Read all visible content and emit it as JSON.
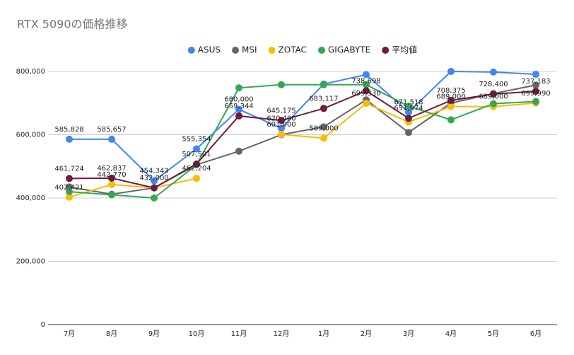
{
  "chart_data": {
    "type": "line",
    "title": "RTX 5090の価格推移",
    "categories": [
      "7月",
      "8月",
      "9月",
      "10月",
      "11月",
      "12月",
      "1月",
      "2月",
      "3月",
      "4月",
      "5月",
      "6月"
    ],
    "ylim": [
      0,
      800000
    ],
    "yticks": [
      {
        "value": 0,
        "label": "0"
      },
      {
        "value": 200000,
        "label": "200,000"
      },
      {
        "value": 400000,
        "label": "400,000"
      },
      {
        "value": 600000,
        "label": "600,000"
      },
      {
        "value": 800000,
        "label": "800,000"
      }
    ],
    "grid": true,
    "legend": "top",
    "series": [
      {
        "name": "ASUS",
        "color": "#4285f4",
        "values": [
          585828,
          585657,
          454343,
          555354,
          680000,
          620400,
          760000,
          790000,
          671518,
          800000,
          798000,
          791000
        ],
        "value_labels": [
          "585,828",
          "585,657",
          "454,343",
          "555,354",
          "680,000",
          "620,400",
          null,
          null,
          "671,518",
          null,
          null,
          null
        ]
      },
      {
        "name": "MSI",
        "color": "#666666",
        "values": [
          435000,
          412000,
          432000,
          505000,
          548000,
          600000,
          625000,
          710000,
          607000,
          700000,
          730000,
          757000
        ]
      },
      {
        "name": "ZOTAC",
        "color": "#fbbc04",
        "values": [
          402421,
          442770,
          432000,
          462204,
          null,
          601000,
          589000,
          699330,
          640000,
          689000,
          689000,
          699990
        ],
        "value_labels": [
          "402,421",
          "442,770",
          null,
          "462,204",
          null,
          "601,000",
          "589,000",
          "699,330",
          null,
          "689,000",
          "689,000",
          "699,990"
        ]
      },
      {
        "name": "GIGABYTE",
        "color": "#34a853",
        "values": [
          420000,
          410000,
          400000,
          505000,
          748000,
          758000,
          758000,
          758000,
          690000,
          647000,
          698000,
          705000
        ]
      },
      {
        "name": "平均値",
        "color": "#6d1b3e",
        "values": [
          461724,
          462837,
          432000,
          507501,
          659344,
          645175,
          683117,
          738698,
          651974,
          708375,
          728400,
          737183
        ],
        "value_labels": [
          "461,724",
          "462,837",
          "432,000",
          "507,501",
          "659,344",
          "645,175",
          "683,117",
          "738,698",
          "651,974",
          "708,375",
          "728,400",
          "737,183"
        ]
      }
    ]
  }
}
